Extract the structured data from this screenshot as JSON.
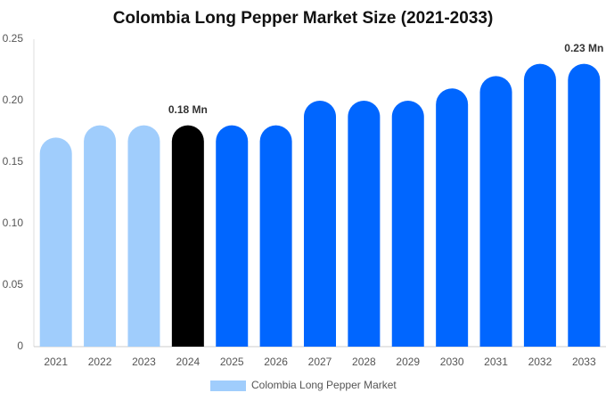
{
  "chart_data": {
    "type": "bar",
    "title": "Colombia Long Pepper Market Size (2021-2033)",
    "categories": [
      "2021",
      "2022",
      "2023",
      "2024",
      "2025",
      "2026",
      "2027",
      "2028",
      "2029",
      "2030",
      "2031",
      "2032",
      "2033"
    ],
    "series": [
      {
        "name": "Colombia Long Pepper Market",
        "color": "#a0cdfc",
        "bar_colors": [
          "#a0cdfc",
          "#a0cdfc",
          "#a0cdfc",
          "#000000",
          "#0066ff",
          "#0066ff",
          "#0066ff",
          "#0066ff",
          "#0066ff",
          "#0066ff",
          "#0066ff",
          "#0066ff",
          "#0066ff"
        ],
        "values": [
          0.17,
          0.18,
          0.18,
          0.18,
          0.18,
          0.18,
          0.2,
          0.2,
          0.2,
          0.21,
          0.22,
          0.23,
          0.23
        ],
        "value_labels": [
          null,
          null,
          null,
          "0.18 Mn",
          null,
          null,
          null,
          null,
          null,
          null,
          null,
          null,
          "0.23 Mn"
        ]
      }
    ],
    "ylim": [
      0,
      0.25
    ],
    "yticks": [
      0,
      0.05,
      {
        "value": 0.1,
        "label": "0.10"
      },
      0.15,
      {
        "value": 0.2,
        "label": "0.20"
      },
      0.25
    ],
    "grid": false
  }
}
